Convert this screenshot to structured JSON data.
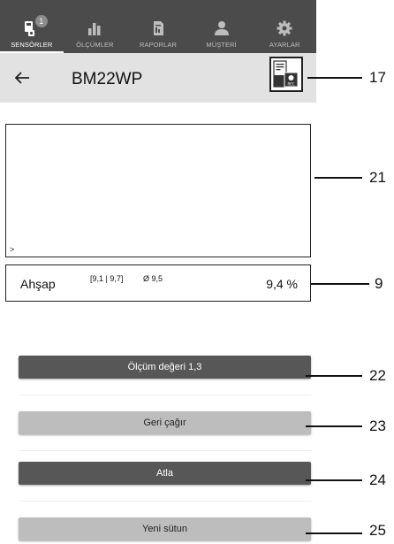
{
  "nav": {
    "tabs": [
      {
        "label": "SENSÖRLER",
        "icon": "sensor-icon",
        "active": true,
        "badge": "1"
      },
      {
        "label": "ÖLÇÜMLER",
        "icon": "bar-chart-icon",
        "active": false
      },
      {
        "label": "RAPORLAR",
        "icon": "report-icon",
        "active": false
      },
      {
        "label": "MÜŞTERİ",
        "icon": "customer-icon",
        "active": false
      },
      {
        "label": "AYARLAR",
        "icon": "gear-icon",
        "active": false
      }
    ]
  },
  "header": {
    "title": "BM22WP",
    "back_icon": "arrow-left-icon",
    "record_icon": "rec-device-icon"
  },
  "console": {
    "prompt": ">"
  },
  "reading": {
    "material": "Ahşap",
    "range": "[9,1 | 9,7]",
    "average": "Ø 9,5",
    "value": "9,4 %"
  },
  "buttons": {
    "measure": "Ölçüm değeri 1,3",
    "recall": "Geri çağır",
    "skip": "Atla",
    "new_column": "Yeni sütun"
  },
  "callouts": {
    "c17": "17",
    "c21": "21",
    "c9": "9",
    "c22": "22",
    "c23": "23",
    "c24": "24",
    "c25": "25"
  },
  "colors": {
    "nav_bg": "#4b4b4b",
    "header_bg": "#e2e2e2",
    "button_dark": "#575757",
    "button_light": "#bdbdbd"
  }
}
